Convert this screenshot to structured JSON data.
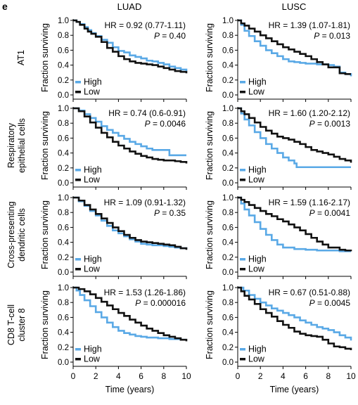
{
  "panel_letter": "e",
  "columns": [
    "LUAD",
    "LUSC"
  ],
  "rows": [
    {
      "label_lines": [
        "AT1"
      ]
    },
    {
      "label_lines": [
        "Respiratory",
        "epithelial cells"
      ]
    },
    {
      "label_lines": [
        "Cross-presenting",
        "dendritic cells"
      ]
    },
    {
      "label_lines": [
        "CD8 T-cell",
        "cluster 8"
      ]
    }
  ],
  "colors": {
    "High": "#5aa9e6",
    "Low": "#111111"
  },
  "chart_data": [
    {
      "type": "line",
      "column": "LUAD",
      "row": "AT1",
      "hr": "HR = 0.92 (0.77-1.11)",
      "p_label": "P",
      "p_value": "= 0.40",
      "xlabel": "",
      "ylabel": "Fraction surviving",
      "xlim": [
        0,
        10
      ],
      "ylim": [
        0,
        1
      ],
      "legend": [
        "High",
        "Low"
      ],
      "legend_position": "bottom-left",
      "series": [
        {
          "name": "High",
          "x": [
            0,
            0.3,
            0.6,
            1,
            1.3,
            1.6,
            2,
            2.5,
            3,
            3.5,
            4,
            4.5,
            5,
            5.5,
            6,
            6.5,
            7,
            7.5,
            8,
            8.5,
            9,
            9.5,
            10
          ],
          "y": [
            1,
            0.98,
            0.95,
            0.91,
            0.87,
            0.83,
            0.79,
            0.74,
            0.7,
            0.64,
            0.59,
            0.57,
            0.53,
            0.51,
            0.49,
            0.46,
            0.45,
            0.43,
            0.41,
            0.38,
            0.36,
            0.34,
            0.32
          ]
        },
        {
          "name": "Low",
          "x": [
            0,
            0.3,
            0.6,
            1,
            1.3,
            1.6,
            2,
            2.5,
            3,
            3.5,
            4,
            4.5,
            5,
            5.5,
            6,
            6.5,
            7,
            7.5,
            8,
            8.5,
            9,
            9.5,
            10
          ],
          "y": [
            1,
            0.98,
            0.94,
            0.89,
            0.85,
            0.82,
            0.78,
            0.71,
            0.63,
            0.58,
            0.52,
            0.48,
            0.45,
            0.43,
            0.42,
            0.41,
            0.4,
            0.38,
            0.36,
            0.34,
            0.32,
            0.31,
            0.29
          ]
        }
      ]
    },
    {
      "type": "line",
      "column": "LUSC",
      "row": "AT1",
      "hr": "HR = 1.39 (1.07-1.81)",
      "p_label": "P",
      "p_value": "= 0.013",
      "xlabel": "",
      "ylabel": "Fraction surviving",
      "xlim": [
        0,
        10
      ],
      "ylim": [
        0,
        1
      ],
      "legend": [
        "High",
        "Low"
      ],
      "legend_position": "bottom-left",
      "series": [
        {
          "name": "High",
          "x": [
            0,
            0.3,
            0.6,
            1,
            1.5,
            2,
            2.5,
            3,
            3.5,
            4,
            4.5,
            5,
            5.5,
            6,
            7,
            8,
            8.5,
            9,
            9.5,
            10
          ],
          "y": [
            1,
            0.94,
            0.86,
            0.79,
            0.72,
            0.66,
            0.6,
            0.56,
            0.52,
            0.48,
            0.45,
            0.44,
            0.43,
            0.42,
            0.41,
            0.4,
            0.38,
            0.3,
            0.28,
            0.25
          ]
        },
        {
          "name": "Low",
          "x": [
            0,
            0.3,
            0.6,
            1,
            1.5,
            2,
            2.5,
            3,
            3.5,
            4,
            4.5,
            5,
            5.5,
            6,
            6.5,
            7,
            7.5,
            8,
            9,
            9.5,
            10
          ],
          "y": [
            1,
            0.96,
            0.93,
            0.89,
            0.85,
            0.8,
            0.76,
            0.72,
            0.68,
            0.64,
            0.61,
            0.58,
            0.55,
            0.52,
            0.48,
            0.44,
            0.41,
            0.37,
            0.29,
            0.28,
            0.28
          ]
        }
      ]
    },
    {
      "type": "line",
      "column": "LUAD",
      "row": "Respiratory epithelial cells",
      "hr": "HR = 0.74 (0.6-0.91)",
      "p_label": "P",
      "p_value": "= 0.0046",
      "xlabel": "",
      "ylabel": "Fraction surviving",
      "xlim": [
        0,
        10
      ],
      "ylim": [
        0,
        1
      ],
      "legend": [
        "High",
        "Low"
      ],
      "legend_position": "bottom-left",
      "series": [
        {
          "name": "High",
          "x": [
            0,
            0.5,
            1,
            1.5,
            2,
            2.5,
            3,
            3.5,
            4,
            4.5,
            5,
            5.5,
            6,
            6.5,
            7,
            7.5,
            8,
            8.5,
            9,
            9.5,
            10
          ],
          "y": [
            1,
            0.97,
            0.92,
            0.87,
            0.82,
            0.76,
            0.71,
            0.67,
            0.63,
            0.59,
            0.55,
            0.52,
            0.49,
            0.46,
            0.44,
            0.44,
            0.44,
            0.37,
            0.37,
            0.37,
            0.37
          ]
        },
        {
          "name": "Low",
          "x": [
            0,
            0.5,
            1,
            1.5,
            2,
            2.5,
            3,
            3.5,
            4,
            4.5,
            5,
            5.5,
            6,
            6.5,
            7,
            7.5,
            8,
            8.5,
            9,
            9.5,
            10
          ],
          "y": [
            1,
            0.96,
            0.89,
            0.81,
            0.74,
            0.67,
            0.61,
            0.55,
            0.5,
            0.46,
            0.42,
            0.39,
            0.36,
            0.34,
            0.32,
            0.31,
            0.3,
            0.3,
            0.29,
            0.28,
            0.26
          ]
        }
      ]
    },
    {
      "type": "line",
      "column": "LUSC",
      "row": "Respiratory epithelial cells",
      "hr": "HR = 1.60 (1.20-2.12)",
      "p_label": "P",
      "p_value": "= 0.0013",
      "xlabel": "",
      "ylabel": "Fraction surviving",
      "xlim": [
        0,
        10
      ],
      "ylim": [
        0,
        1
      ],
      "legend": [
        "High",
        "Low"
      ],
      "legend_position": "bottom-left",
      "series": [
        {
          "name": "High",
          "x": [
            0,
            0.3,
            0.6,
            1,
            1.5,
            2,
            2.5,
            3,
            3.5,
            4,
            4.5,
            5,
            5.2,
            6,
            7,
            8,
            9,
            10
          ],
          "y": [
            1,
            0.93,
            0.85,
            0.77,
            0.68,
            0.6,
            0.52,
            0.46,
            0.4,
            0.34,
            0.3,
            0.26,
            0.21,
            0.21,
            0.21,
            0.21,
            0.21,
            0.21
          ]
        },
        {
          "name": "Low",
          "x": [
            0,
            0.3,
            0.6,
            1,
            1.5,
            2,
            2.5,
            3,
            3.5,
            4,
            4.5,
            5,
            5.5,
            6,
            6.5,
            7,
            7.5,
            8,
            8.5,
            9,
            9.5,
            10
          ],
          "y": [
            1,
            0.96,
            0.92,
            0.87,
            0.81,
            0.75,
            0.7,
            0.66,
            0.62,
            0.6,
            0.58,
            0.55,
            0.52,
            0.48,
            0.44,
            0.42,
            0.4,
            0.38,
            0.35,
            0.32,
            0.3,
            0.27
          ]
        }
      ]
    },
    {
      "type": "line",
      "column": "LUAD",
      "row": "Cross-presenting dendritic cells",
      "hr": "HR = 1.09 (0.91-1.32)",
      "p_label": "P",
      "p_value": "= 0.35",
      "xlabel": "",
      "ylabel": "Fraction surviving",
      "xlim": [
        0,
        10
      ],
      "ylim": [
        0,
        1
      ],
      "legend": [
        "High",
        "Low"
      ],
      "legend_position": "bottom-left",
      "series": [
        {
          "name": "High",
          "x": [
            0,
            0.5,
            1,
            1.5,
            2,
            2.5,
            3,
            3.5,
            4,
            4.5,
            5,
            5.5,
            6,
            6.5,
            7,
            7.5,
            8,
            8.5,
            9,
            9.5,
            10
          ],
          "y": [
            1,
            0.95,
            0.89,
            0.82,
            0.76,
            0.69,
            0.62,
            0.56,
            0.52,
            0.48,
            0.44,
            0.41,
            0.38,
            0.37,
            0.36,
            0.36,
            0.35,
            0.34,
            0.33,
            0.32,
            0.31
          ]
        },
        {
          "name": "Low",
          "x": [
            0,
            0.5,
            1,
            1.5,
            2,
            2.5,
            3,
            3.5,
            4,
            4.5,
            5,
            5.5,
            6,
            6.5,
            7,
            7.5,
            8,
            8.5,
            9,
            9.5,
            10
          ],
          "y": [
            1,
            0.96,
            0.9,
            0.84,
            0.78,
            0.72,
            0.66,
            0.6,
            0.55,
            0.5,
            0.46,
            0.43,
            0.41,
            0.4,
            0.39,
            0.38,
            0.37,
            0.36,
            0.34,
            0.32,
            0.3
          ]
        }
      ]
    },
    {
      "type": "line",
      "column": "LUSC",
      "row": "Cross-presenting dendritic cells",
      "hr": "HR = 1.59 (1.16-2.17)",
      "p_label": "P",
      "p_value": "= 0.0041",
      "xlabel": "",
      "ylabel": "Fraction surviving",
      "xlim": [
        0,
        10
      ],
      "ylim": [
        0,
        1
      ],
      "legend": [
        "High",
        "Low"
      ],
      "legend_position": "bottom-left",
      "series": [
        {
          "name": "High",
          "x": [
            0,
            0.3,
            0.6,
            1,
            1.5,
            2,
            2.5,
            3,
            3.5,
            4,
            5,
            6,
            7,
            8,
            9,
            10
          ],
          "y": [
            1,
            0.92,
            0.84,
            0.76,
            0.67,
            0.58,
            0.5,
            0.43,
            0.37,
            0.33,
            0.31,
            0.3,
            0.29,
            0.29,
            0.28,
            0.28
          ]
        },
        {
          "name": "Low",
          "x": [
            0,
            0.3,
            0.6,
            1,
            1.5,
            2,
            2.5,
            3,
            3.5,
            4,
            4.5,
            5,
            5.5,
            6,
            6.5,
            7,
            7.5,
            8,
            9,
            9.5,
            10
          ],
          "y": [
            1,
            0.97,
            0.94,
            0.9,
            0.86,
            0.82,
            0.78,
            0.75,
            0.71,
            0.68,
            0.64,
            0.6,
            0.56,
            0.51,
            0.46,
            0.41,
            0.37,
            0.33,
            0.3,
            0.29,
            0.28
          ]
        }
      ]
    },
    {
      "type": "line",
      "column": "LUAD",
      "row": "CD8 T-cell cluster 8",
      "hr": "HR = 1.53 (1.26-1.86)",
      "p_label": "P",
      "p_value": "= 0.000016",
      "xlabel": "Time (years)",
      "ylabel": "Fraction surviving",
      "xlim": [
        0,
        10
      ],
      "ylim": [
        0,
        1
      ],
      "xticks": [
        0,
        2,
        4,
        6,
        8,
        10
      ],
      "legend": [
        "High",
        "Low"
      ],
      "legend_position": "bottom-left",
      "series": [
        {
          "name": "High",
          "x": [
            0,
            0.3,
            0.6,
            1,
            1.5,
            2,
            2.5,
            3,
            3.5,
            4,
            4.5,
            5,
            5.5,
            6,
            6.5,
            7,
            7.5,
            8,
            8.5,
            9,
            9.5,
            10
          ],
          "y": [
            1,
            0.96,
            0.9,
            0.83,
            0.75,
            0.67,
            0.6,
            0.53,
            0.47,
            0.42,
            0.39,
            0.37,
            0.35,
            0.34,
            0.33,
            0.33,
            0.32,
            0.32,
            0.31,
            0.31,
            0.3,
            0.3
          ]
        },
        {
          "name": "Low",
          "x": [
            0,
            0.5,
            1,
            1.5,
            2,
            2.5,
            3,
            3.5,
            4,
            4.5,
            5,
            5.5,
            6,
            6.5,
            7,
            7.5,
            8,
            8.5,
            9,
            9.5,
            10
          ],
          "y": [
            1,
            0.98,
            0.95,
            0.91,
            0.86,
            0.81,
            0.76,
            0.71,
            0.66,
            0.62,
            0.57,
            0.53,
            0.49,
            0.45,
            0.42,
            0.39,
            0.36,
            0.34,
            0.32,
            0.3,
            0.28
          ]
        }
      ]
    },
    {
      "type": "line",
      "column": "LUSC",
      "row": "CD8 T-cell cluster 8",
      "hr": "HR = 0.67 (0.51-0.88)",
      "p_label": "P",
      "p_value": "= 0.0045",
      "xlabel": "Time (years)",
      "ylabel": "Fraction surviving",
      "xlim": [
        0,
        10
      ],
      "ylim": [
        0,
        1
      ],
      "xticks": [
        0,
        2,
        4,
        6,
        8,
        10
      ],
      "legend": [
        "High",
        "Low"
      ],
      "legend_position": "bottom-left",
      "series": [
        {
          "name": "High",
          "x": [
            0,
            0.5,
            1,
            1.5,
            2,
            2.5,
            3,
            3.5,
            4,
            4.5,
            5,
            5.5,
            6,
            6.5,
            7,
            7.5,
            8,
            8.5,
            9,
            9.5,
            10
          ],
          "y": [
            1,
            0.96,
            0.9,
            0.85,
            0.8,
            0.76,
            0.72,
            0.69,
            0.66,
            0.63,
            0.6,
            0.56,
            0.53,
            0.5,
            0.47,
            0.45,
            0.43,
            0.4,
            0.36,
            0.33,
            0.29
          ]
        },
        {
          "name": "Low",
          "x": [
            0,
            0.3,
            0.6,
            1,
            1.5,
            2,
            2.5,
            3,
            3.5,
            4,
            4.5,
            5,
            5.5,
            6,
            6.5,
            7,
            7.5,
            8,
            8.5,
            9,
            9.5,
            10
          ],
          "y": [
            1,
            0.95,
            0.89,
            0.84,
            0.78,
            0.71,
            0.66,
            0.61,
            0.55,
            0.5,
            0.46,
            0.41,
            0.38,
            0.36,
            0.35,
            0.34,
            0.3,
            0.25,
            0.21,
            0.2,
            0.18,
            0.16
          ]
        }
      ]
    }
  ]
}
